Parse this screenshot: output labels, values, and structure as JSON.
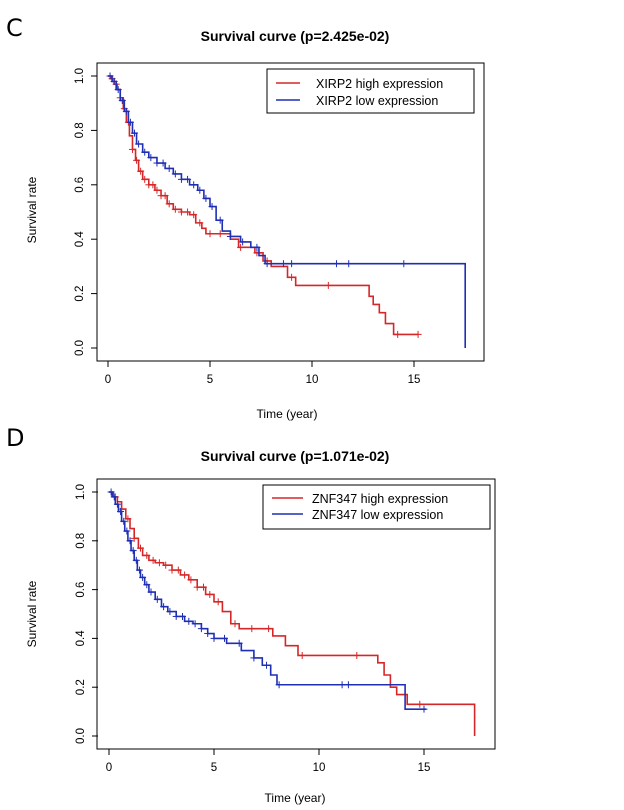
{
  "chart_data": [
    {
      "panel_label": "C",
      "type": "line",
      "subtype": "kaplan-meier",
      "title": "Survival curve (p=2.425e-02)",
      "xlabel": "Time (year)",
      "ylabel": "Survival rate",
      "xlim": [
        0,
        17.5
      ],
      "ylim": [
        0,
        1.0
      ],
      "xticks": [
        "0",
        "5",
        "10",
        "15"
      ],
      "yticks": [
        "0.0",
        "0.2",
        "0.4",
        "0.6",
        "0.8",
        "1.0"
      ],
      "grid": false,
      "legend_position": "top-right",
      "series": [
        {
          "name": "XIRP2 high expression",
          "color": "#d62728",
          "steps": [
            [
              0,
              1.0
            ],
            [
              0.15,
              0.99
            ],
            [
              0.3,
              0.97
            ],
            [
              0.45,
              0.95
            ],
            [
              0.6,
              0.92
            ],
            [
              0.75,
              0.88
            ],
            [
              0.9,
              0.83
            ],
            [
              1.05,
              0.78
            ],
            [
              1.2,
              0.73
            ],
            [
              1.35,
              0.69
            ],
            [
              1.5,
              0.65
            ],
            [
              1.7,
              0.62
            ],
            [
              2.0,
              0.6
            ],
            [
              2.3,
              0.58
            ],
            [
              2.6,
              0.56
            ],
            [
              2.9,
              0.53
            ],
            [
              3.2,
              0.51
            ],
            [
              3.6,
              0.5
            ],
            [
              4.0,
              0.49
            ],
            [
              4.3,
              0.46
            ],
            [
              4.6,
              0.44
            ],
            [
              4.8,
              0.42
            ],
            [
              5.5,
              0.42
            ],
            [
              6.0,
              0.4
            ],
            [
              6.4,
              0.37
            ],
            [
              7.2,
              0.35
            ],
            [
              7.6,
              0.32
            ],
            [
              8.0,
              0.3
            ],
            [
              8.8,
              0.26
            ],
            [
              9.2,
              0.23
            ],
            [
              11.5,
              0.23
            ],
            [
              12.8,
              0.19
            ],
            [
              13.0,
              0.16
            ],
            [
              13.3,
              0.13
            ],
            [
              13.6,
              0.09
            ],
            [
              14.0,
              0.05
            ],
            [
              15.2,
              0.05
            ]
          ],
          "censor_times": [
            0.2,
            0.4,
            0.6,
            0.8,
            1.0,
            1.2,
            1.4,
            1.6,
            1.8,
            2.0,
            2.2,
            2.4,
            2.6,
            2.8,
            3.0,
            3.3,
            3.6,
            3.9,
            4.2,
            4.5,
            5.0,
            5.5,
            6.5,
            7.3,
            7.8,
            9.0,
            10.8,
            14.2,
            15.2
          ]
        },
        {
          "name": "XIRP2 low expression",
          "color": "#1f2fb4",
          "steps": [
            [
              0,
              1.0
            ],
            [
              0.2,
              0.98
            ],
            [
              0.4,
              0.95
            ],
            [
              0.6,
              0.91
            ],
            [
              0.8,
              0.87
            ],
            [
              1.0,
              0.83
            ],
            [
              1.2,
              0.79
            ],
            [
              1.4,
              0.75
            ],
            [
              1.7,
              0.72
            ],
            [
              2.0,
              0.7
            ],
            [
              2.4,
              0.68
            ],
            [
              2.8,
              0.66
            ],
            [
              3.2,
              0.64
            ],
            [
              3.6,
              0.62
            ],
            [
              4.0,
              0.6
            ],
            [
              4.4,
              0.58
            ],
            [
              4.7,
              0.55
            ],
            [
              5.0,
              0.52
            ],
            [
              5.3,
              0.47
            ],
            [
              5.6,
              0.43
            ],
            [
              6.0,
              0.41
            ],
            [
              6.5,
              0.39
            ],
            [
              7.0,
              0.37
            ],
            [
              7.4,
              0.34
            ],
            [
              7.7,
              0.31
            ],
            [
              8.0,
              0.31
            ],
            [
              12.0,
              0.31
            ],
            [
              17.5,
              0.31
            ],
            [
              17.51,
              0.0
            ]
          ],
          "censor_times": [
            0.1,
            0.3,
            0.5,
            0.7,
            0.9,
            1.1,
            1.3,
            1.5,
            1.8,
            2.1,
            2.4,
            2.7,
            3.0,
            3.3,
            3.6,
            3.9,
            4.2,
            4.5,
            4.8,
            5.1,
            5.5,
            6.0,
            6.6,
            7.3,
            7.8,
            8.6,
            9.0,
            11.2,
            11.8,
            14.5
          ]
        }
      ]
    },
    {
      "panel_label": "D",
      "type": "line",
      "subtype": "kaplan-meier",
      "title": "Survival curve (p=1.071e-02)",
      "xlabel": "Time (year)",
      "ylabel": "Survival rate",
      "xlim": [
        0,
        17.5
      ],
      "ylim": [
        0,
        1.0
      ],
      "xticks": [
        "0",
        "5",
        "10",
        "15"
      ],
      "yticks": [
        "0.0",
        "0.2",
        "0.4",
        "0.6",
        "0.8",
        "1.0"
      ],
      "grid": false,
      "legend_position": "top-right",
      "series": [
        {
          "name": "ZNF347 high expression",
          "color": "#d62728",
          "steps": [
            [
              0,
              1.0
            ],
            [
              0.2,
              0.98
            ],
            [
              0.4,
              0.96
            ],
            [
              0.6,
              0.93
            ],
            [
              0.8,
              0.89
            ],
            [
              1.0,
              0.85
            ],
            [
              1.2,
              0.81
            ],
            [
              1.4,
              0.77
            ],
            [
              1.6,
              0.74
            ],
            [
              1.9,
              0.72
            ],
            [
              2.2,
              0.71
            ],
            [
              2.6,
              0.7
            ],
            [
              3.0,
              0.68
            ],
            [
              3.4,
              0.66
            ],
            [
              3.8,
              0.64
            ],
            [
              4.2,
              0.61
            ],
            [
              4.6,
              0.58
            ],
            [
              5.0,
              0.55
            ],
            [
              5.4,
              0.51
            ],
            [
              5.8,
              0.46
            ],
            [
              6.2,
              0.44
            ],
            [
              7.0,
              0.44
            ],
            [
              7.8,
              0.41
            ],
            [
              8.4,
              0.37
            ],
            [
              9.0,
              0.33
            ],
            [
              12.0,
              0.33
            ],
            [
              12.8,
              0.3
            ],
            [
              13.1,
              0.25
            ],
            [
              13.4,
              0.2
            ],
            [
              13.7,
              0.17
            ],
            [
              14.2,
              0.13
            ],
            [
              17.4,
              0.13
            ],
            [
              17.41,
              0.0
            ]
          ],
          "censor_times": [
            0.3,
            0.6,
            0.9,
            1.2,
            1.5,
            1.8,
            2.1,
            2.4,
            2.7,
            3.0,
            3.3,
            3.6,
            3.9,
            4.2,
            4.5,
            4.8,
            5.2,
            6.0,
            6.8,
            7.6,
            9.2,
            11.8,
            14.8
          ]
        },
        {
          "name": "ZNF347 low expression",
          "color": "#1f2fb4",
          "steps": [
            [
              0,
              1.0
            ],
            [
              0.15,
              0.98
            ],
            [
              0.3,
              0.95
            ],
            [
              0.45,
              0.92
            ],
            [
              0.6,
              0.88
            ],
            [
              0.75,
              0.84
            ],
            [
              0.9,
              0.8
            ],
            [
              1.05,
              0.76
            ],
            [
              1.2,
              0.72
            ],
            [
              1.35,
              0.68
            ],
            [
              1.5,
              0.65
            ],
            [
              1.7,
              0.62
            ],
            [
              1.9,
              0.59
            ],
            [
              2.2,
              0.56
            ],
            [
              2.5,
              0.53
            ],
            [
              2.8,
              0.51
            ],
            [
              3.2,
              0.49
            ],
            [
              3.6,
              0.47
            ],
            [
              4.0,
              0.46
            ],
            [
              4.4,
              0.44
            ],
            [
              4.7,
              0.42
            ],
            [
              5.0,
              0.4
            ],
            [
              5.6,
              0.38
            ],
            [
              6.3,
              0.35
            ],
            [
              6.9,
              0.32
            ],
            [
              7.3,
              0.29
            ],
            [
              7.7,
              0.25
            ],
            [
              8.0,
              0.21
            ],
            [
              13.8,
              0.21
            ],
            [
              14.1,
              0.11
            ],
            [
              15.1,
              0.11
            ]
          ],
          "censor_times": [
            0.1,
            0.25,
            0.4,
            0.55,
            0.7,
            0.85,
            1.0,
            1.15,
            1.3,
            1.45,
            1.6,
            1.8,
            2.0,
            2.3,
            2.6,
            2.9,
            3.2,
            3.5,
            3.8,
            4.1,
            4.4,
            4.7,
            5.0,
            5.5,
            6.2,
            6.9,
            7.5,
            8.1,
            11.1,
            11.4,
            15.0
          ]
        }
      ]
    }
  ]
}
